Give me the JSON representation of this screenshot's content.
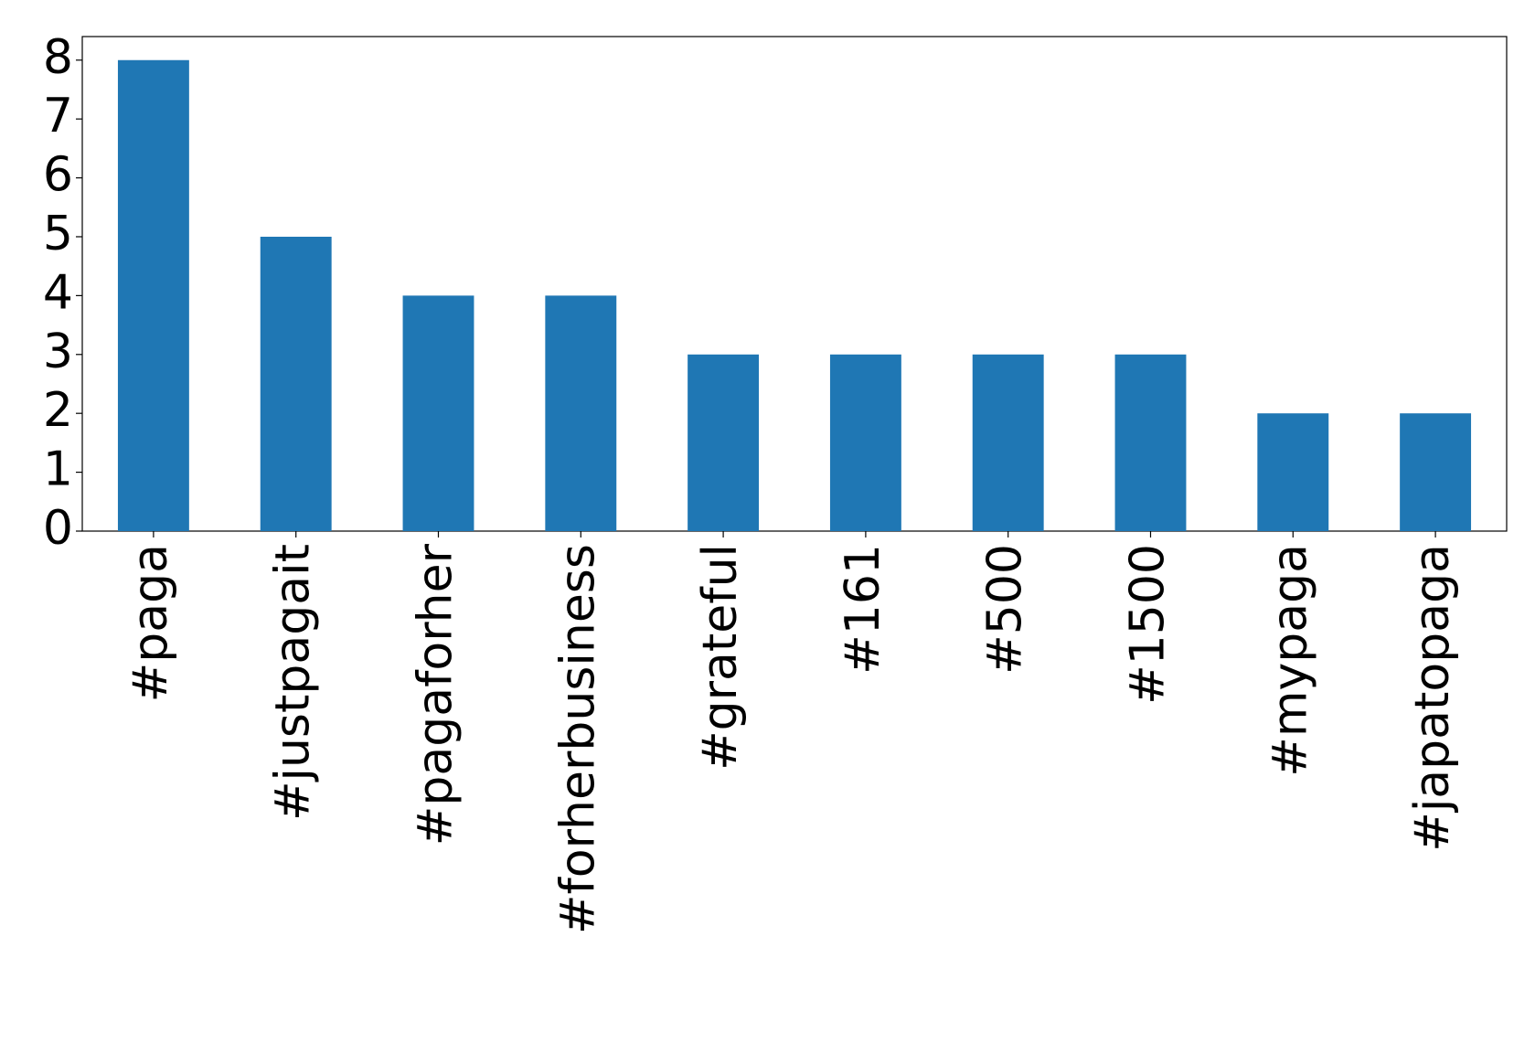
{
  "chart_data": {
    "type": "bar",
    "categories": [
      "#paga",
      "#justpagait",
      "#pagaforher",
      "#forherbusiness",
      "#grateful",
      "#161",
      "#500",
      "#1500",
      "#mypaga",
      "#japatopaga"
    ],
    "values": [
      8,
      5,
      4,
      4,
      3,
      3,
      3,
      3,
      2,
      2
    ],
    "color": "#1f77b4",
    "ylim": [
      0,
      8.4
    ],
    "yticks": [
      0,
      1,
      2,
      3,
      4,
      5,
      6,
      7,
      8
    ],
    "grid": false
  }
}
